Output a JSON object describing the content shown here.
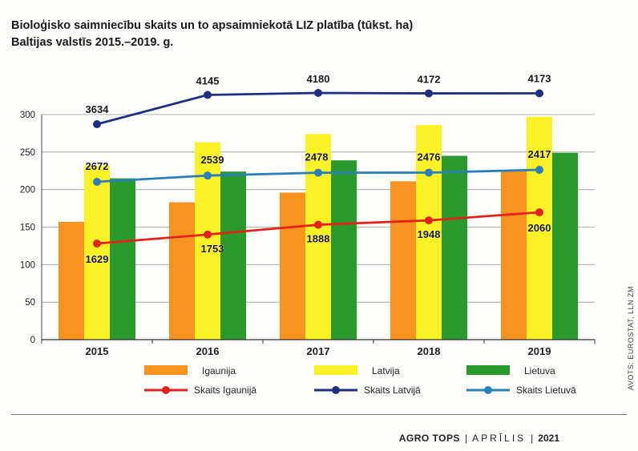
{
  "header": {
    "title_line1": "Bioloģisko saimniecību skaits un to apsaimniekotā LIZ platība (tūkst. ha)",
    "title_line2": "Baltijas valstīs 2015.–2019. g."
  },
  "chart_data": {
    "type": "bar",
    "categories": [
      "2015",
      "2016",
      "2017",
      "2018",
      "2019"
    ],
    "series": [
      {
        "name": "Igaunija",
        "type": "bar",
        "color": "#f7931e",
        "values": [
          157,
          183,
          196,
          211,
          226
        ]
      },
      {
        "name": "Latvija",
        "type": "bar",
        "color": "#fbf226",
        "values": [
          232,
          263,
          274,
          286,
          297
        ]
      },
      {
        "name": "Lietuva",
        "type": "bar",
        "color": "#2a9a2f",
        "values": [
          215,
          224,
          239,
          245,
          249
        ]
      }
    ],
    "line_series": [
      {
        "name": "Skaits Igaunijā",
        "type": "line",
        "color": "#e3231b",
        "values": [
          1629,
          1753,
          1888,
          1948,
          2060
        ]
      },
      {
        "name": "Skaits Latvijā",
        "type": "line",
        "color": "#1f2f7f",
        "values": [
          3634,
          4145,
          4180,
          4172,
          4173
        ]
      },
      {
        "name": "Skaits Lietuvā",
        "type": "line",
        "color": "#2b7fb8",
        "values": [
          2672,
          2539,
          2478,
          2476,
          2417
        ]
      }
    ],
    "yticks": [
      0,
      50,
      100,
      150,
      200,
      250,
      300
    ],
    "ylim": [
      0,
      300
    ],
    "grid": true,
    "legend_position": "bottom"
  },
  "side_credit": "AVOTS: EUROSTAT, LLN ZM",
  "footer": {
    "magazine": "AGRO TOPS",
    "month": "APRĪLIS",
    "year": "2021"
  }
}
